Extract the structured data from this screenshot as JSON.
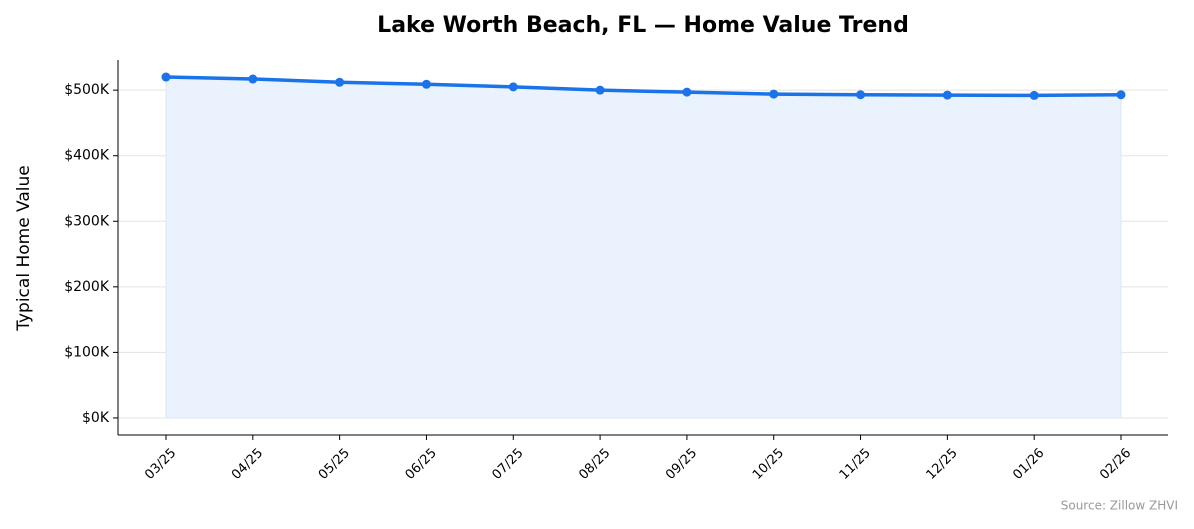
{
  "chart_data": {
    "type": "line",
    "title": "Lake Worth Beach, FL — Home Value Trend",
    "y_label": "Typical Home Value",
    "source": "Source: Zillow ZHVI",
    "categories": [
      "03/25",
      "04/25",
      "05/25",
      "06/25",
      "07/25",
      "08/25",
      "09/25",
      "10/25",
      "11/25",
      "12/25",
      "01/26",
      "02/26"
    ],
    "series": [
      {
        "name": "Typical Home Value",
        "color": "#1a73e8",
        "fill": "#eaf2fd",
        "values": [
          520000,
          517000,
          512000,
          509000,
          505000,
          500000,
          497000,
          494000,
          493000,
          492500,
          492000,
          493000
        ]
      }
    ],
    "ylim": [
      -26000,
      546000
    ],
    "yticks": [
      {
        "value": 0,
        "label": "$0K"
      },
      {
        "value": 100000,
        "label": "$100K"
      },
      {
        "value": 200000,
        "label": "$200K"
      },
      {
        "value": 300000,
        "label": "$300K"
      },
      {
        "value": 400000,
        "label": "$400K"
      },
      {
        "value": 500000,
        "label": "$500K"
      }
    ],
    "grid": true
  }
}
